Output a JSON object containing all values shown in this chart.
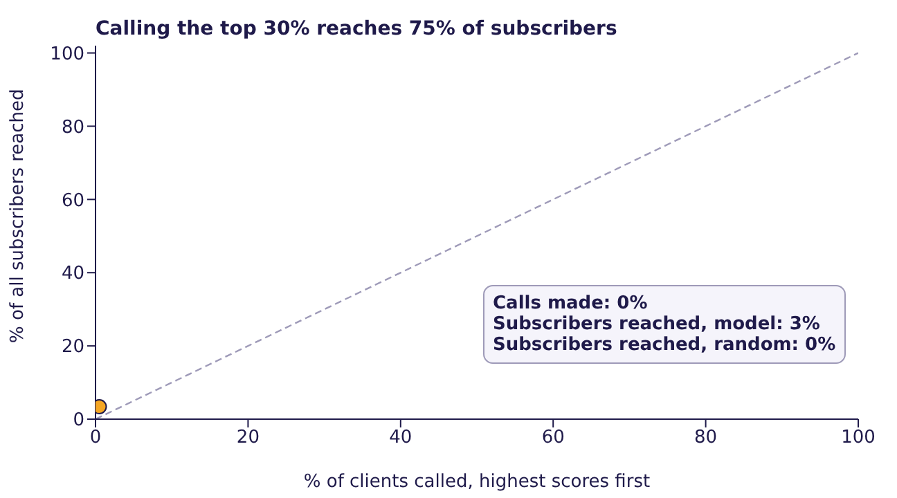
{
  "chart_data": {
    "type": "scatter",
    "title": "Calling the top 30% reaches 75% of subscribers",
    "xlabel": "% of clients called, highest scores first",
    "ylabel": "% of all subscribers reached",
    "xlim": [
      0,
      100
    ],
    "ylim": [
      0,
      102
    ],
    "xticks": [
      0,
      20,
      40,
      60,
      80,
      100
    ],
    "yticks": [
      0,
      20,
      40,
      60,
      80,
      100
    ],
    "grid": false,
    "series": [
      {
        "type": "line",
        "color": "#9e9ab8",
        "line_style": "dashed",
        "x": [
          0,
          100
        ],
        "values": [
          0,
          100
        ]
      },
      {
        "color": "#f5a623",
        "marker": "circle",
        "x": [
          0.5
        ],
        "values": [
          3.4
        ]
      }
    ],
    "annotations": [
      "Calls made: 0%",
      "Subscribers reached, model: 3%",
      "Subscribers reached, random: 0%"
    ]
  }
}
